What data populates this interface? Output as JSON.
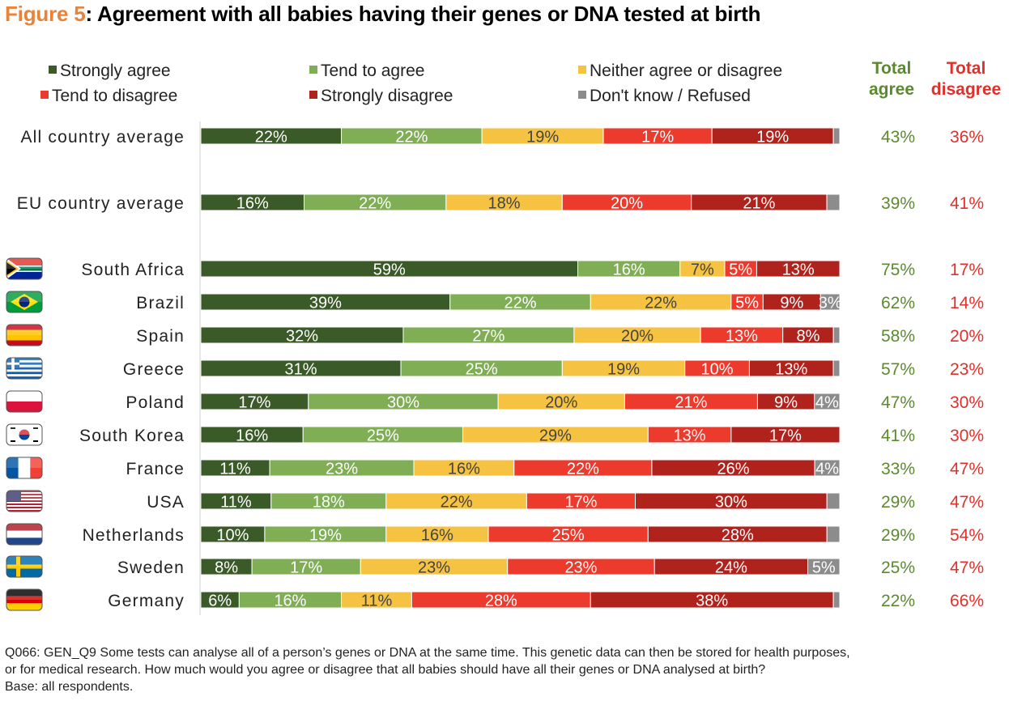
{
  "title": {
    "prefix": "Figure 5",
    "text": ": Agreement with all babies having their genes or DNA tested at birth"
  },
  "legend": [
    {
      "label": "Strongly agree",
      "color": "#3a5a28"
    },
    {
      "label": "Tend to agree",
      "color": "#7fae55"
    },
    {
      "label": "Neither agree or disagree",
      "color": "#f5c242"
    },
    {
      "label": "Tend to disagree",
      "color": "#ec3a2c"
    },
    {
      "label": "Strongly disagree",
      "color": "#b0221c"
    },
    {
      "label": "Don't know / Refused",
      "color": "#8c8c8c"
    }
  ],
  "totals_headers": {
    "agree": "Total agree",
    "disagree": "Total disagree",
    "agree_color": "#5b8a2e",
    "disagree_color": "#e0302a"
  },
  "chart_data": {
    "type": "bar",
    "orientation": "horizontal-stacked-100",
    "series_names": [
      "Strongly agree",
      "Tend to agree",
      "Neither agree or disagree",
      "Tend to disagree",
      "Strongly disagree",
      "Don't know / Refused"
    ],
    "rows": [
      {
        "label": "All country average",
        "flag": "",
        "values": [
          22,
          22,
          19,
          17,
          19,
          1
        ],
        "labels": [
          "22%",
          "22%",
          "19%",
          "17%",
          "19%",
          ""
        ],
        "total_agree": "43%",
        "total_disagree": "36%"
      },
      {
        "label": "EU country average",
        "flag": "",
        "values": [
          16,
          22,
          18,
          20,
          21,
          2
        ],
        "labels": [
          "16%",
          "22%",
          "18%",
          "20%",
          "21%",
          ""
        ],
        "total_agree": "39%",
        "total_disagree": "41%"
      },
      {
        "label": "South Africa",
        "flag": "south-africa",
        "values": [
          59,
          16,
          7,
          5,
          13,
          0
        ],
        "labels": [
          "59%",
          "16%",
          "7%",
          "5%",
          "13%",
          ""
        ],
        "total_agree": "75%",
        "total_disagree": "17%"
      },
      {
        "label": "Brazil",
        "flag": "brazil",
        "values": [
          39,
          22,
          22,
          5,
          9,
          3
        ],
        "labels": [
          "39%",
          "22%",
          "22%",
          "5%",
          "9%",
          "3%"
        ],
        "total_agree": "62%",
        "total_disagree": "14%"
      },
      {
        "label": "Spain",
        "flag": "spain",
        "values": [
          32,
          27,
          20,
          13,
          8,
          1
        ],
        "labels": [
          "32%",
          "27%",
          "20%",
          "13%",
          "8%",
          ""
        ],
        "total_agree": "58%",
        "total_disagree": "20%"
      },
      {
        "label": "Greece",
        "flag": "greece",
        "values": [
          31,
          25,
          19,
          10,
          13,
          1
        ],
        "labels": [
          "31%",
          "25%",
          "19%",
          "10%",
          "13%",
          ""
        ],
        "total_agree": "57%",
        "total_disagree": "23%"
      },
      {
        "label": "Poland",
        "flag": "poland",
        "values": [
          17,
          30,
          20,
          21,
          9,
          4
        ],
        "labels": [
          "17%",
          "30%",
          "20%",
          "21%",
          "9%",
          "4%"
        ],
        "total_agree": "47%",
        "total_disagree": "30%"
      },
      {
        "label": "South Korea",
        "flag": "south-korea",
        "values": [
          16,
          25,
          29,
          13,
          17,
          0
        ],
        "labels": [
          "16%",
          "25%",
          "29%",
          "13%",
          "17%",
          ""
        ],
        "total_agree": "41%",
        "total_disagree": "30%"
      },
      {
        "label": "France",
        "flag": "france",
        "values": [
          11,
          23,
          16,
          22,
          26,
          4
        ],
        "labels": [
          "11%",
          "23%",
          "16%",
          "22%",
          "26%",
          "4%"
        ],
        "total_agree": "33%",
        "total_disagree": "47%"
      },
      {
        "label": "USA",
        "flag": "usa",
        "values": [
          11,
          18,
          22,
          17,
          30,
          2
        ],
        "labels": [
          "11%",
          "18%",
          "22%",
          "17%",
          "30%",
          ""
        ],
        "total_agree": "29%",
        "total_disagree": "47%"
      },
      {
        "label": "Netherlands",
        "flag": "netherlands",
        "values": [
          10,
          19,
          16,
          25,
          28,
          2
        ],
        "labels": [
          "10%",
          "19%",
          "16%",
          "25%",
          "28%",
          ""
        ],
        "total_agree": "29%",
        "total_disagree": "54%"
      },
      {
        "label": "Sweden",
        "flag": "sweden",
        "values": [
          8,
          17,
          23,
          23,
          24,
          5
        ],
        "labels": [
          "8%",
          "17%",
          "23%",
          "23%",
          "24%",
          "5%"
        ],
        "total_agree": "25%",
        "total_disagree": "47%"
      },
      {
        "label": "Germany",
        "flag": "germany",
        "values": [
          6,
          16,
          11,
          28,
          38,
          1
        ],
        "labels": [
          "6%",
          "16%",
          "11%",
          "28%",
          "38%",
          ""
        ],
        "total_agree": "22%",
        "total_disagree": "66%"
      }
    ]
  },
  "footnote": {
    "line1": "Q066: GEN_Q9 Some tests can analyse all of a person’s genes or DNA at the same time. This genetic data can then be stored for health purposes,",
    "line2": "or for medical research. How much would you agree or disagree that all babies should have all their genes or DNA analysed at birth?",
    "line3": "Base: all respondents."
  }
}
